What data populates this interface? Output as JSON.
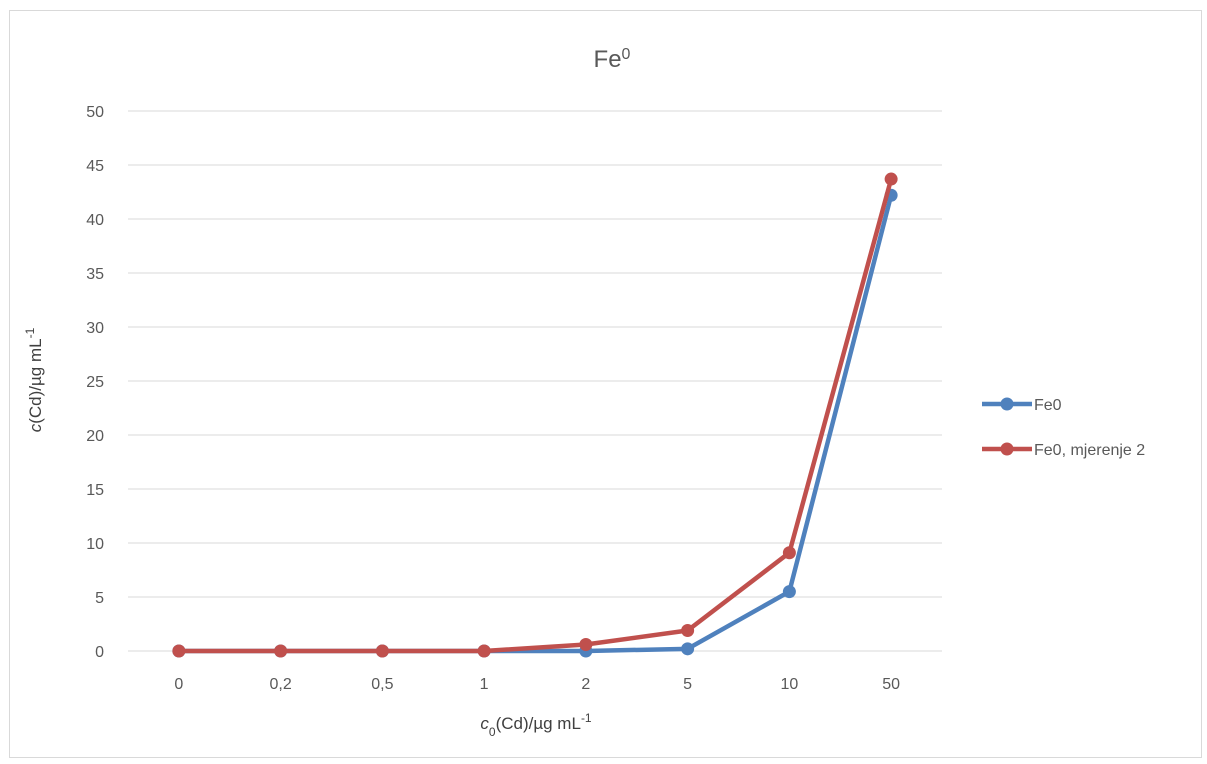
{
  "chart_data": {
    "type": "line",
    "title": {
      "base": "Fe",
      "sup": "0"
    },
    "xlabel": {
      "italic": "c",
      "sub": "0",
      "rest": "(Cd)/µg mL",
      "sup": "-1"
    },
    "ylabel": {
      "italic": "c",
      "rest": "(Cd)/µg mL",
      "sup": "-1"
    },
    "categories": [
      "0",
      "0,2",
      "0,5",
      "1",
      "2",
      "5",
      "10",
      "50"
    ],
    "ylim": [
      0,
      50
    ],
    "yticks": [
      0,
      5,
      10,
      15,
      20,
      25,
      30,
      35,
      40,
      45,
      50
    ],
    "grid": true,
    "legend_position": "right",
    "series": [
      {
        "name": "Fe0",
        "color": "#4f81bd",
        "values": [
          0,
          0,
          0,
          0,
          0,
          0.2,
          5.5,
          42.2
        ]
      },
      {
        "name": "Fe0, mjerenje 2",
        "color": "#c0504d",
        "values": [
          0,
          0,
          0,
          0,
          0.6,
          1.9,
          9.1,
          43.7
        ]
      }
    ]
  }
}
